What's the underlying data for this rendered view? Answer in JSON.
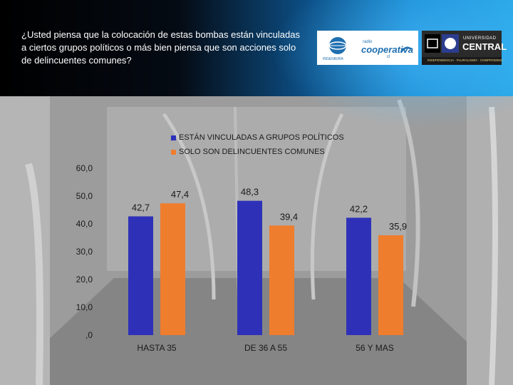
{
  "header": {
    "question": "¿Usted piensa que la colocación de estas bombas están vinculadas a ciertos grupos políticos o más bien piensa que son acciones solo de delincuentes comunes?"
  },
  "logos": {
    "left_icon": "globe-icon",
    "left_small": "INGENIERÍA",
    "cooperativa_top": "radio",
    "cooperativa": "cooperativa",
    "cooperativa_sub": "cl",
    "university_top": "UNIVERSIDAD",
    "university_name": "CENTRAL",
    "university_slogan": "INDEPENDENCIA - PLURALISMO - COMPROMISO"
  },
  "colors": {
    "series1": "#2e31b8",
    "series2": "#ef7d2e"
  },
  "chart_data": {
    "type": "bar",
    "categories": [
      "HASTA 35",
      "DE 36 A 55",
      "56 Y MAS"
    ],
    "series": [
      {
        "name": "ESTÁN VINCULADAS A GRUPOS POLÍTICOS",
        "values": [
          42.7,
          48.3,
          42.2
        ],
        "labels": [
          "42,7",
          "48,3",
          "42,2"
        ]
      },
      {
        "name": "SOLO SON DELINCUENTES COMUNES",
        "values": [
          47.4,
          39.4,
          35.9
        ],
        "labels": [
          "47,4",
          "39,4",
          "35,9"
        ]
      }
    ],
    "ylim": [
      0,
      60
    ],
    "yticks": [
      {
        "value": 60,
        "label": "60,0"
      },
      {
        "value": 50,
        "label": "50,0"
      },
      {
        "value": 40,
        "label": "40,0"
      },
      {
        "value": 30,
        "label": "30,0"
      },
      {
        "value": 20,
        "label": "20,0"
      },
      {
        "value": 10,
        "label": "10,0"
      },
      {
        "value": 0,
        "label": ",0"
      }
    ],
    "grid": false,
    "legend": "top"
  }
}
